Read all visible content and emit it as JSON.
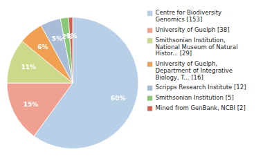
{
  "chart_data": {
    "type": "pie",
    "categories": [
      "Centre for Biodiversity\nGenomics [153]",
      "University of Guelph [38]",
      "Smithsonian Institution,\nNational Museum of Natural\nHistor... [29]",
      "University of Guelph,\nDepartment of Integrative\nBiology, T... [16]",
      "Scripps Research Institute [12]",
      "Smithsonian Institution [5]",
      "Mined from GenBank, NCBI [2]"
    ],
    "values": [
      60,
      15,
      11,
      6,
      5,
      2,
      1
    ],
    "value_labels": [
      "60%",
      "15%",
      "11%",
      "6%",
      "5%",
      "2%",
      "1%"
    ],
    "colors": [
      "#b8cfe8",
      "#f0a090",
      "#cdd98a",
      "#f0a050",
      "#a8bcd8",
      "#88c878",
      "#d46050"
    ],
    "data_labels": true,
    "legend": "right"
  }
}
